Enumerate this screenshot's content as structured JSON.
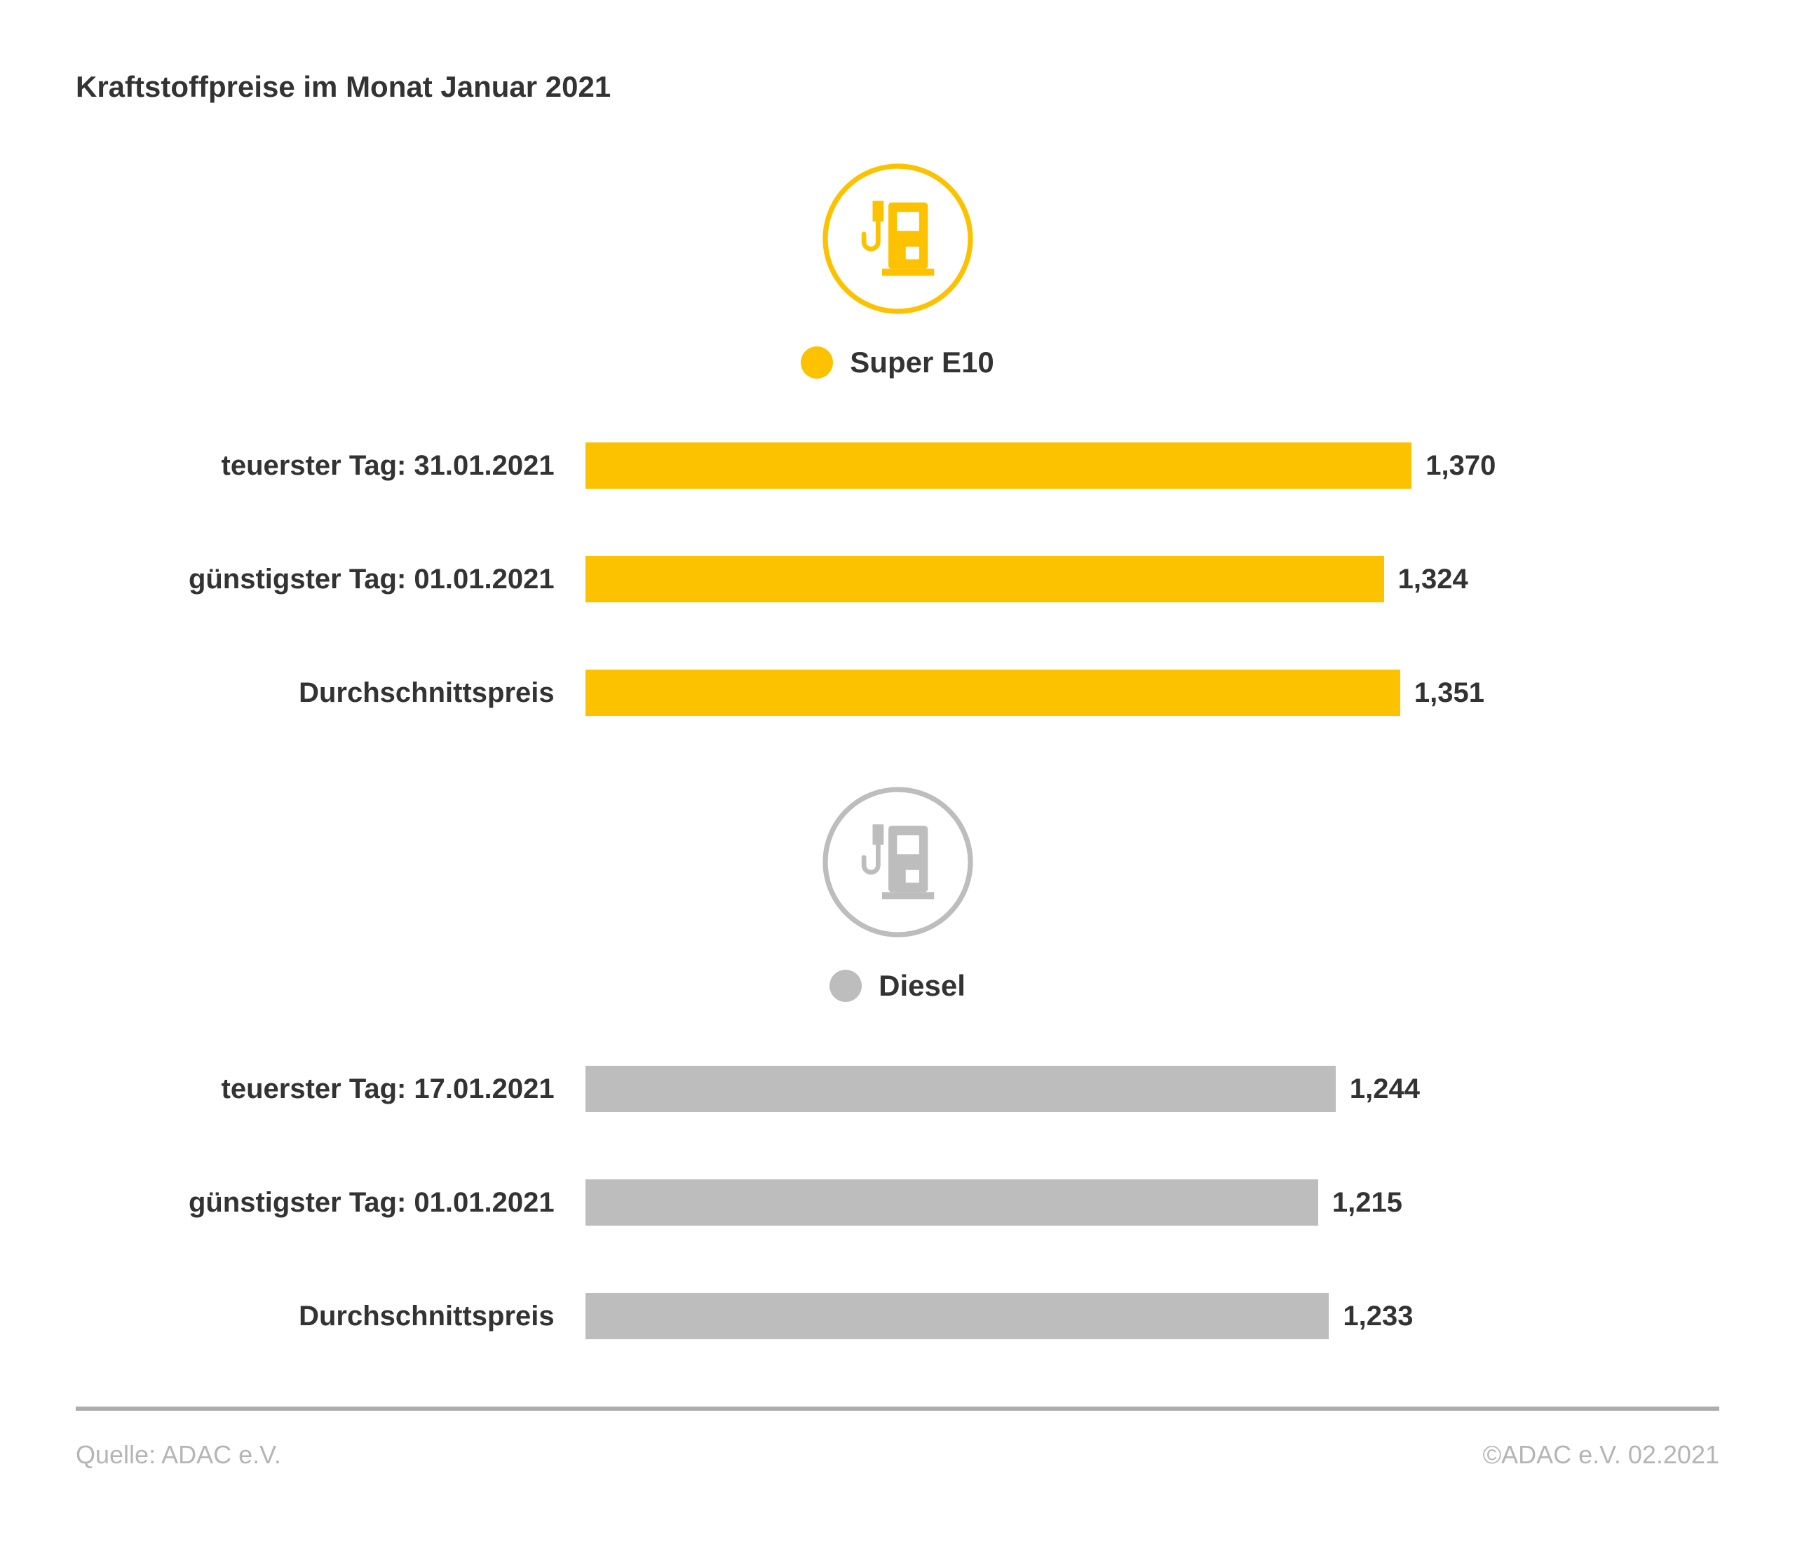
{
  "title": "Kraftstoffpreise im Monat Januar 2021",
  "colors": {
    "super_e10": "#FCC200",
    "diesel": "#BDBDBD",
    "text": "#333333",
    "footer_text": "#B5B5B5"
  },
  "sections": [
    {
      "id": "super-e10",
      "legend_label": "Super E10",
      "color": "#FCC200",
      "rows": [
        {
          "label": "teuerster Tag: 31.01.2021",
          "value": 1370,
          "value_label": "1,370"
        },
        {
          "label": "günstigster Tag: 01.01.2021",
          "value": 1324,
          "value_label": "1,324"
        },
        {
          "label": "Durchschnittspreis",
          "value": 1351,
          "value_label": "1,351"
        }
      ]
    },
    {
      "id": "diesel",
      "legend_label": "Diesel",
      "color": "#BDBDBD",
      "rows": [
        {
          "label": "teuerster Tag: 17.01.2021",
          "value": 1244,
          "value_label": "1,244"
        },
        {
          "label": "günstigster Tag: 01.01.2021",
          "value": 1215,
          "value_label": "1,215"
        },
        {
          "label": "Durchschnittspreis",
          "value": 1233,
          "value_label": "1,233"
        }
      ]
    }
  ],
  "footer": {
    "source": "Quelle: ADAC e.V.",
    "copyright": "©ADAC e.V. 02.2021"
  },
  "chart_data": [
    {
      "type": "bar",
      "orientation": "horizontal",
      "title": "Super E10",
      "categories": [
        "teuerster Tag: 31.01.2021",
        "günstigster Tag: 01.01.2021",
        "Durchschnittspreis"
      ],
      "values": [
        1.37,
        1.324,
        1.351
      ],
      "value_labels": [
        "1,370",
        "1,324",
        "1,351"
      ],
      "bar_color": "#FCC200",
      "xlim": [
        0,
        1.88
      ],
      "grid": false,
      "legend_position": "top-center"
    },
    {
      "type": "bar",
      "orientation": "horizontal",
      "title": "Diesel",
      "categories": [
        "teuerster Tag: 17.01.2021",
        "günstigster Tag: 01.01.2021",
        "Durchschnittspreis"
      ],
      "values": [
        1.244,
        1.215,
        1.233
      ],
      "value_labels": [
        "1,244",
        "1,215",
        "1,233"
      ],
      "bar_color": "#BDBDBD",
      "xlim": [
        0,
        1.88
      ],
      "grid": false,
      "legend_position": "top-center"
    }
  ]
}
